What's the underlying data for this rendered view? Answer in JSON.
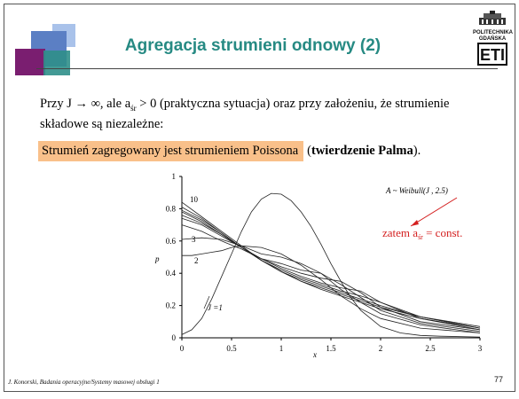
{
  "slide": {
    "title": "Agregacja strumieni odnowy (2)",
    "logo_text_line1": "POLITECHNIKA",
    "logo_text_line2": "GDAŃSKA",
    "logo_mark": "ETI",
    "paragraph": {
      "pre": "Przy J → ∞, ale a",
      "sub": "śr",
      "post": " > 0 (praktyczna sytuacja) oraz przy założeniu, że strumienie składowe są niezależne:"
    },
    "highlight": "Strumień zagregowany jest strumieniem Poissona",
    "highlight_tail_open": "(",
    "highlight_bold": "twierdzenie Palma",
    "highlight_tail_close": ")."
  },
  "chart_data": {
    "type": "line",
    "xlabel": "x",
    "ylabel": "p",
    "xlim": [
      0,
      3
    ],
    "ylim": [
      0,
      1
    ],
    "x_ticks": [
      "0",
      "0.5",
      "1",
      "1.5",
      "2",
      "2.5",
      "3"
    ],
    "y_ticks": [
      "0",
      "0.2",
      "0.4",
      "0.6",
      "0.8",
      "1"
    ],
    "grid": false,
    "annotations": {
      "distribution": "A ~ Weibull(J , 2.5)",
      "conclusion_pre": "zatem a",
      "conclusion_sub": "śr",
      "conclusion_post": " = const.",
      "conclusion_color": "#d42020",
      "label_j1": "J =1",
      "label_2": "2",
      "label_3": "3",
      "label_10": "10"
    },
    "series": [
      {
        "name": "J =1",
        "x": [
          0,
          0.1,
          0.2,
          0.3,
          0.4,
          0.5,
          0.6,
          0.7,
          0.8,
          0.9,
          1.0,
          1.1,
          1.2,
          1.3,
          1.4,
          1.5,
          1.6,
          1.7,
          1.8,
          2.0,
          2.2,
          2.4,
          2.6,
          3.0
        ],
        "y": [
          0.02,
          0.05,
          0.12,
          0.24,
          0.38,
          0.52,
          0.66,
          0.78,
          0.86,
          0.895,
          0.89,
          0.85,
          0.78,
          0.69,
          0.58,
          0.46,
          0.35,
          0.25,
          0.17,
          0.07,
          0.03,
          0.015,
          0.01,
          0.005
        ]
      },
      {
        "name": "2",
        "x": [
          0,
          0.1,
          0.2,
          0.3,
          0.4,
          0.5,
          0.6,
          0.8,
          1.0,
          1.2,
          1.4,
          1.6,
          1.8,
          2.0,
          2.4,
          3.0
        ],
        "y": [
          0.51,
          0.51,
          0.52,
          0.53,
          0.54,
          0.56,
          0.57,
          0.56,
          0.52,
          0.45,
          0.36,
          0.26,
          0.18,
          0.12,
          0.06,
          0.03
        ]
      },
      {
        "name": "3",
        "x": [
          0,
          0.2,
          0.4,
          0.5,
          0.6,
          0.8,
          1.0,
          1.2,
          1.4,
          1.6,
          1.8,
          2.0,
          2.4,
          3.0
        ],
        "y": [
          0.61,
          0.62,
          0.61,
          0.59,
          0.57,
          0.52,
          0.5,
          0.46,
          0.4,
          0.3,
          0.22,
          0.15,
          0.08,
          0.03
        ]
      },
      {
        "name": "4",
        "x": [
          0,
          0.2,
          0.4,
          0.6,
          0.8,
          1.0,
          1.2,
          1.4,
          1.6,
          1.8,
          2.0,
          2.4,
          3.0
        ],
        "y": [
          0.7,
          0.66,
          0.6,
          0.55,
          0.49,
          0.46,
          0.42,
          0.4,
          0.33,
          0.25,
          0.17,
          0.09,
          0.04
        ]
      },
      {
        "name": "5",
        "x": [
          0,
          0.2,
          0.4,
          0.6,
          0.8,
          1.0,
          1.2,
          1.4,
          1.6,
          1.8,
          2.0,
          2.4,
          3.0
        ],
        "y": [
          0.74,
          0.7,
          0.63,
          0.56,
          0.49,
          0.44,
          0.4,
          0.37,
          0.35,
          0.28,
          0.19,
          0.1,
          0.05
        ]
      },
      {
        "name": "6",
        "x": [
          0,
          0.2,
          0.4,
          0.6,
          0.8,
          1.0,
          1.2,
          1.4,
          1.6,
          1.8,
          2.0,
          2.4,
          3.0
        ],
        "y": [
          0.76,
          0.71,
          0.64,
          0.56,
          0.49,
          0.43,
          0.38,
          0.34,
          0.31,
          0.29,
          0.22,
          0.12,
          0.05
        ]
      },
      {
        "name": "7",
        "x": [
          0,
          0.2,
          0.4,
          0.6,
          0.8,
          1.0,
          1.2,
          1.4,
          1.6,
          1.8,
          2.0,
          2.4,
          3.0
        ],
        "y": [
          0.78,
          0.72,
          0.64,
          0.56,
          0.48,
          0.42,
          0.37,
          0.33,
          0.29,
          0.26,
          0.22,
          0.13,
          0.06
        ]
      },
      {
        "name": "8",
        "x": [
          0,
          0.2,
          0.4,
          0.6,
          0.8,
          1.0,
          1.2,
          1.4,
          1.6,
          1.8,
          2.0,
          2.4,
          3.0
        ],
        "y": [
          0.79,
          0.73,
          0.65,
          0.56,
          0.48,
          0.41,
          0.36,
          0.32,
          0.28,
          0.24,
          0.2,
          0.13,
          0.06
        ]
      },
      {
        "name": "9",
        "x": [
          0,
          0.2,
          0.4,
          0.6,
          0.8,
          1.0,
          1.2,
          1.4,
          1.6,
          1.8,
          2.0,
          2.4,
          3.0
        ],
        "y": [
          0.81,
          0.74,
          0.65,
          0.56,
          0.48,
          0.41,
          0.35,
          0.31,
          0.27,
          0.23,
          0.19,
          0.13,
          0.07
        ]
      },
      {
        "name": "10",
        "x": [
          0,
          0.2,
          0.4,
          0.6,
          0.8,
          1.0,
          1.2,
          1.4,
          1.6,
          1.8,
          2.0,
          2.4,
          3.0
        ],
        "y": [
          0.84,
          0.75,
          0.66,
          0.57,
          0.48,
          0.41,
          0.35,
          0.3,
          0.26,
          0.22,
          0.18,
          0.12,
          0.06
        ]
      }
    ]
  },
  "footer": {
    "left": "J. Konorski, Badania operacyjne/Systemy masowej obsługi 1",
    "page": "77"
  }
}
